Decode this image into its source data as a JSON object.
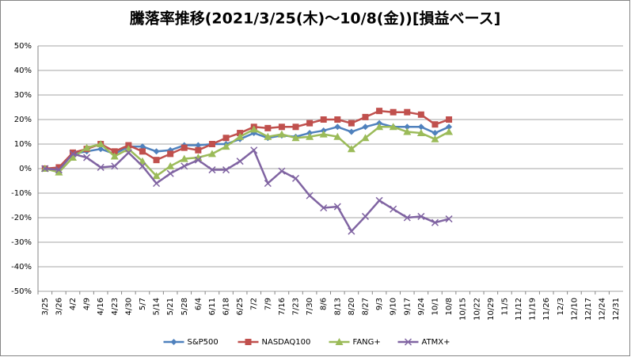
{
  "chart_data": {
    "type": "line",
    "title": "騰落率推移(2021/3/25(木)～10/8(金))[損益ベース]",
    "categories": [
      "3/25",
      "3/26",
      "4/2",
      "4/9",
      "4/16",
      "4/23",
      "4/30",
      "5/7",
      "5/14",
      "5/21",
      "5/28",
      "6/4",
      "6/11",
      "6/18",
      "6/25",
      "7/2",
      "7/9",
      "7/16",
      "7/23",
      "7/30",
      "8/6",
      "8/13",
      "8/20",
      "8/27",
      "9/3",
      "9/10",
      "9/17",
      "9/24",
      "10/1",
      "10/8",
      "10/15",
      "10/22",
      "10/29",
      "11/5",
      "11/12",
      "11/19",
      "11/26",
      "12/3",
      "12/10",
      "12/17",
      "12/24",
      "12/31"
    ],
    "series": [
      {
        "name": "S&P500",
        "color": "#4f81bd",
        "marker": "diamond",
        "values": [
          0,
          0,
          6,
          7,
          8,
          6,
          9,
          9,
          7,
          7.5,
          9.5,
          9.5,
          10,
          10,
          12,
          14.5,
          12.5,
          13.5,
          13,
          14.5,
          15.5,
          17,
          15,
          17,
          18.5,
          17,
          17,
          17,
          14.5,
          17,
          null,
          null,
          null,
          null,
          null,
          null,
          null,
          null,
          null,
          null,
          null,
          null
        ]
      },
      {
        "name": "NASDAQ100",
        "color": "#c0504d",
        "marker": "square",
        "values": [
          0,
          0.5,
          6.5,
          8,
          10,
          7,
          9.5,
          7,
          3.5,
          6,
          8.5,
          7.5,
          10,
          12.5,
          14.5,
          17,
          16.5,
          17,
          17,
          18.5,
          20,
          20,
          18.5,
          21,
          23.5,
          23,
          23,
          22,
          18,
          20,
          null,
          null,
          null,
          null,
          null,
          null,
          null,
          null,
          null,
          null,
          null,
          null
        ]
      },
      {
        "name": "FANG+",
        "color": "#9bbb59",
        "marker": "triangle",
        "values": [
          0,
          -1.5,
          4.5,
          8.5,
          10,
          5,
          8,
          3,
          -3,
          1,
          4,
          4.5,
          6,
          9,
          13,
          16,
          13,
          14,
          12.5,
          13,
          14,
          13,
          8,
          12.5,
          17,
          17,
          15,
          14.5,
          12,
          15,
          null,
          null,
          null,
          null,
          null,
          null,
          null,
          null,
          null,
          null,
          null,
          null
        ]
      },
      {
        "name": "ATMX+",
        "color": "#8064a2",
        "marker": "x",
        "values": [
          0,
          -0.5,
          6,
          4.5,
          0.5,
          1,
          6.5,
          1,
          -6,
          -2,
          1,
          3.5,
          -0.5,
          -0.5,
          3,
          7.5,
          -6,
          -1,
          -4,
          -11,
          -16,
          -15.5,
          -25.5,
          -19.5,
          -13,
          -16.5,
          -20,
          -19.5,
          -22,
          -20.5,
          null,
          null,
          null,
          null,
          null,
          null,
          null,
          null,
          null,
          null,
          null,
          null
        ]
      }
    ],
    "ylim": [
      -50,
      50
    ],
    "yticks": [
      {
        "value": -50,
        "label": "-50%"
      },
      {
        "value": -40,
        "label": "-40%"
      },
      {
        "value": -30,
        "label": "-30%"
      },
      {
        "value": -20,
        "label": "-20%"
      },
      {
        "value": -10,
        "label": "-10%"
      },
      {
        "value": 0,
        "label": "0%"
      },
      {
        "value": 10,
        "label": "10%"
      },
      {
        "value": 20,
        "label": "20%"
      },
      {
        "value": 30,
        "label": "30%"
      },
      {
        "value": 40,
        "label": "40%"
      },
      {
        "value": 50,
        "label": "50%"
      }
    ],
    "grid": true,
    "legend": "bottom"
  }
}
